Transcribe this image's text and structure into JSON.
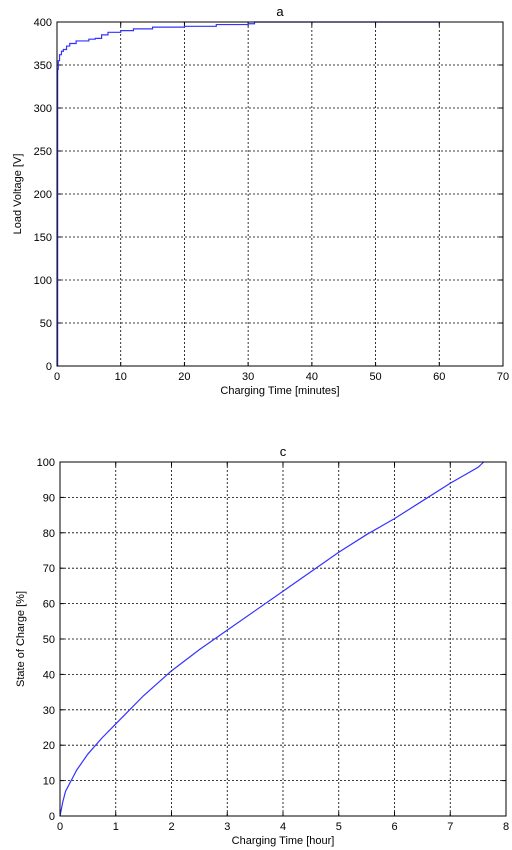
{
  "chart_data": [
    {
      "type": "line",
      "title": "a",
      "xlabel": "Charging Time [minutes]",
      "ylabel": "Load Voltage [V]",
      "xlim": [
        0,
        70
      ],
      "ylim": [
        0,
        400
      ],
      "xticks": [
        0,
        10,
        20,
        30,
        40,
        50,
        60,
        70
      ],
      "yticks": [
        0,
        50,
        100,
        150,
        200,
        250,
        300,
        350,
        400
      ],
      "grid": true,
      "line_style": "step",
      "series": [
        {
          "color": "#3333ff",
          "x": [
            0,
            0.1,
            0.2,
            0.4,
            0.7,
            1,
            1.5,
            2,
            3,
            5,
            6,
            7,
            8,
            10,
            12,
            15,
            20,
            25,
            30,
            31,
            60
          ],
          "y": [
            0,
            345,
            355,
            362,
            366,
            368,
            372,
            375,
            378,
            380,
            381,
            385,
            388,
            390,
            392,
            394,
            395,
            397,
            398,
            400,
            400
          ]
        }
      ]
    },
    {
      "type": "line",
      "title": "c",
      "xlabel": "Charging Time [hour]",
      "ylabel": "State of Charge [%]",
      "xlim": [
        0,
        8
      ],
      "ylim": [
        0,
        100
      ],
      "xticks": [
        0,
        1,
        2,
        3,
        4,
        5,
        6,
        7,
        8
      ],
      "yticks": [
        0,
        10,
        20,
        30,
        40,
        50,
        60,
        70,
        80,
        90,
        100
      ],
      "grid": true,
      "line_style": "smooth",
      "series": [
        {
          "color": "#3333ff",
          "x": [
            0,
            0.05,
            0.1,
            0.2,
            0.3,
            0.5,
            0.75,
            1,
            1.5,
            2,
            2.5,
            3,
            3.5,
            4,
            4.5,
            5,
            5.5,
            6,
            6.5,
            7,
            7.5,
            7.6
          ],
          "y": [
            0,
            4,
            7,
            10,
            13,
            17.5,
            22,
            26,
            34,
            41,
            47,
            52.5,
            58,
            63.5,
            69,
            74.5,
            79.5,
            84,
            89,
            94,
            98.5,
            100
          ]
        }
      ]
    }
  ]
}
